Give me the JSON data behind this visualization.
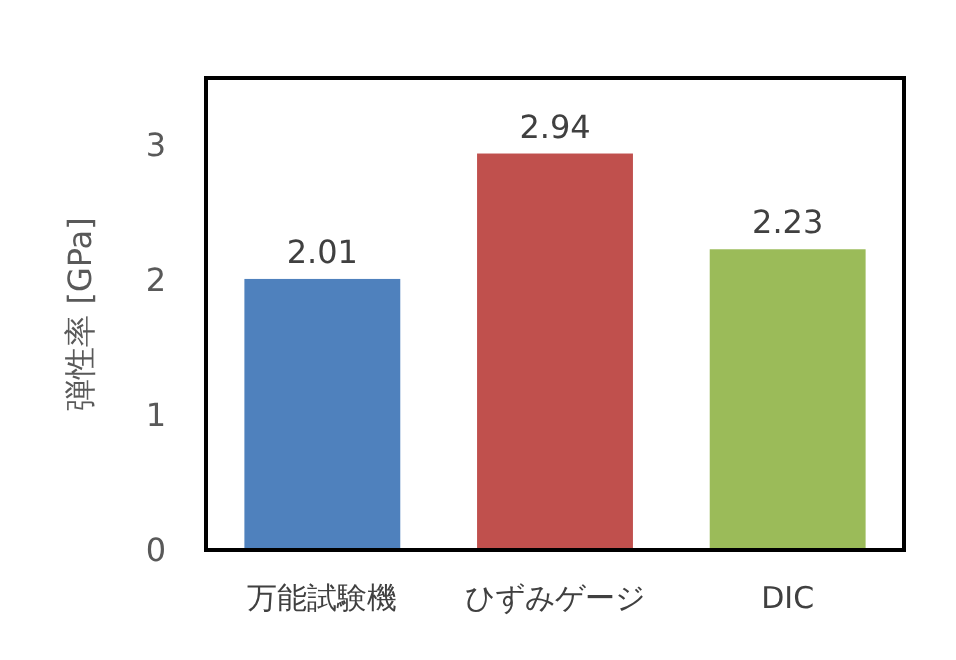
{
  "chart_data": {
    "type": "bar",
    "ylabel": "弾性率 [GPa]",
    "categories": [
      "万能試験機",
      "ひずみゲージ",
      "DIC"
    ],
    "values": [
      2.01,
      2.94,
      2.23
    ],
    "colors": [
      "#4f81bd",
      "#c0504d",
      "#9bbb59"
    ],
    "ylim": [
      0,
      3.5
    ],
    "yticks": [
      0,
      1,
      2,
      3
    ],
    "grid": false,
    "data_labels": true
  }
}
